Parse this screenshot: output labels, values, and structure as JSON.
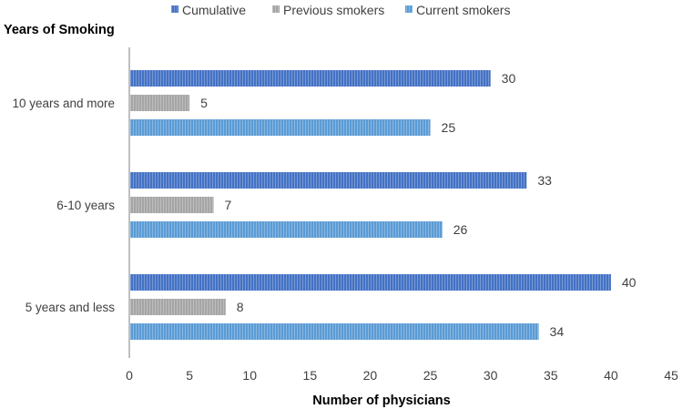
{
  "chart_data": {
    "type": "bar",
    "orientation": "horizontal",
    "categories": [
      "10 years and more",
      "6-10 years",
      "5 years and less"
    ],
    "series": [
      {
        "name": "Cumulative",
        "values": [
          30,
          33,
          40
        ],
        "color": "#4472C4",
        "pattern": "vertical-stripes"
      },
      {
        "name": "Previous smokers",
        "values": [
          5,
          7,
          8
        ],
        "color": "#A5A5A5",
        "pattern": "vertical-stripes"
      },
      {
        "name": "Current smokers",
        "values": [
          25,
          26,
          34
        ],
        "color": "#5B9BD5",
        "pattern": "vertical-stripes"
      }
    ],
    "xlabel": "Number of physicians",
    "ylabel": "Years of Smoking",
    "xlim": [
      0,
      45
    ],
    "xticks": [
      0,
      5,
      10,
      15,
      20,
      25,
      30,
      35,
      40,
      45
    ],
    "grid": false,
    "legend_position": "top",
    "data_labels": true
  }
}
